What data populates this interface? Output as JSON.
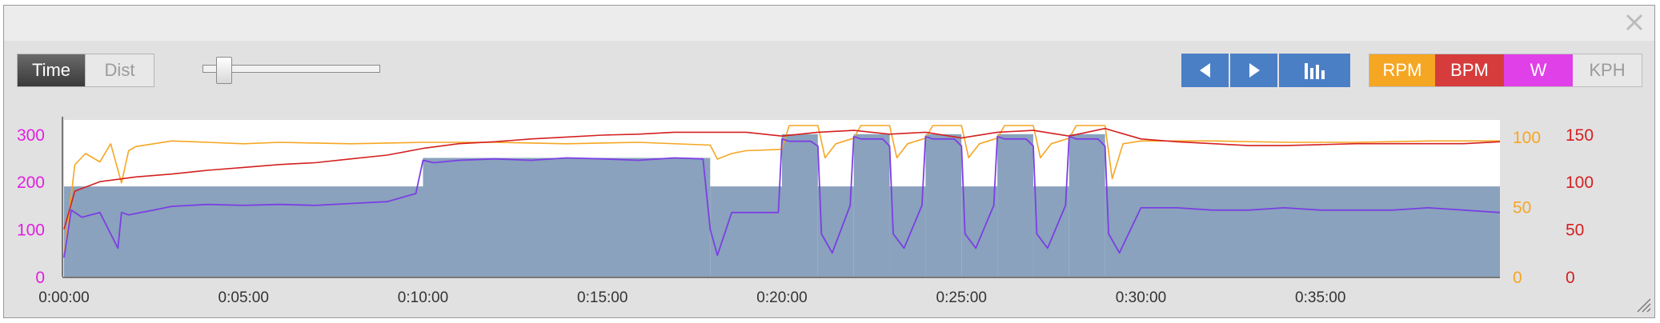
{
  "toggle": {
    "time_label": "Time",
    "dist_label": "Dist"
  },
  "slider": {
    "level": 0.12
  },
  "nav": {
    "prev_icon": "triangle-left-icon",
    "next_icon": "triangle-right-icon",
    "bars_icon": "bar-chart-icon"
  },
  "metrics": [
    {
      "label": "RPM",
      "color": "#f5a623"
    },
    {
      "label": "BPM",
      "color": "#d63c3c"
    },
    {
      "label": "W",
      "color": "#e040e8"
    },
    {
      "label": "KPH",
      "color": "#e8e8e8"
    }
  ],
  "chart_data": {
    "type": "area",
    "x_unit": "minutes",
    "x_ticks": [
      "0:00:00",
      "0:05:00",
      "0:10:00",
      "0:15:00",
      "0:20:00",
      "0:25:00",
      "0:30:00",
      "0:35:00"
    ],
    "xlim": [
      0,
      40
    ],
    "axes": {
      "watts": {
        "ticks": [
          "0",
          "100",
          "200",
          "300"
        ],
        "ylim": [
          0,
          330
        ],
        "color": "#e020e0"
      },
      "cadence": {
        "ticks": [
          "0",
          "50",
          "100"
        ],
        "ylim": [
          0,
          112
        ],
        "color": "#f5a623"
      },
      "heart_rate": {
        "ticks": [
          "0",
          "50",
          "100",
          "150"
        ],
        "ylim": [
          0,
          165
        ],
        "color": "#d42020"
      }
    },
    "target_blocks": [
      {
        "start": 0,
        "end": 0.2,
        "watts": 190
      },
      {
        "start": 0.2,
        "end": 10,
        "watts": 190
      },
      {
        "start": 10,
        "end": 18,
        "watts": 250
      },
      {
        "start": 18,
        "end": 20,
        "watts": 190
      },
      {
        "start": 20,
        "end": 21,
        "watts": 300
      },
      {
        "start": 21,
        "end": 22,
        "watts": 190
      },
      {
        "start": 22,
        "end": 23,
        "watts": 300
      },
      {
        "start": 23,
        "end": 24,
        "watts": 190
      },
      {
        "start": 24,
        "end": 25,
        "watts": 300
      },
      {
        "start": 25,
        "end": 26,
        "watts": 190
      },
      {
        "start": 26,
        "end": 27,
        "watts": 300
      },
      {
        "start": 27,
        "end": 28,
        "watts": 190
      },
      {
        "start": 28,
        "end": 29,
        "watts": 300
      },
      {
        "start": 29,
        "end": 40,
        "watts": 190
      }
    ],
    "power_series": {
      "name": "W",
      "color": "#7b3fe4",
      "x": [
        0,
        0.2,
        0.5,
        1,
        1.5,
        1.6,
        1.8,
        2.5,
        3,
        4,
        5,
        6,
        7,
        8,
        9,
        9.8,
        10,
        10.3,
        11,
        12,
        13,
        14,
        15,
        16,
        17,
        17.8,
        18,
        18.2,
        18.6,
        19,
        19.9,
        20,
        20.2,
        20.8,
        21,
        21.1,
        21.4,
        21.9,
        22,
        22.2,
        22.8,
        23,
        23.1,
        23.4,
        23.9,
        24,
        24.2,
        24.8,
        25,
        25.1,
        25.4,
        25.9,
        26,
        26.2,
        26.8,
        27,
        27.1,
        27.4,
        27.9,
        28,
        28.2,
        28.8,
        29,
        29.1,
        29.4,
        30,
        31,
        32,
        33,
        34,
        35,
        36,
        37,
        38,
        39,
        40
      ],
      "y": [
        40,
        140,
        125,
        135,
        60,
        135,
        130,
        140,
        148,
        152,
        150,
        152,
        150,
        154,
        158,
        175,
        245,
        240,
        245,
        248,
        245,
        250,
        248,
        245,
        250,
        248,
        100,
        45,
        135,
        135,
        135,
        290,
        285,
        285,
        275,
        90,
        50,
        150,
        295,
        290,
        290,
        275,
        90,
        60,
        150,
        295,
        290,
        290,
        275,
        90,
        60,
        150,
        295,
        290,
        290,
        275,
        90,
        60,
        150,
        295,
        290,
        290,
        275,
        90,
        50,
        145,
        145,
        140,
        140,
        145,
        140,
        140,
        140,
        145,
        140,
        135
      ]
    },
    "cadence_series": {
      "name": "RPM",
      "color": "#f5a623",
      "x": [
        0,
        0.3,
        0.6,
        1,
        1.3,
        1.6,
        1.8,
        2,
        2.5,
        3,
        4,
        5,
        6,
        8,
        10,
        12,
        14,
        16,
        18,
        18.2,
        18.6,
        19,
        20,
        20.2,
        21,
        21.2,
        21.5,
        22,
        22.2,
        23,
        23.2,
        23.5,
        24,
        24.2,
        25,
        25.2,
        25.5,
        26,
        26.2,
        27,
        27.2,
        27.5,
        28,
        28.2,
        29,
        29.2,
        29.5,
        30,
        32,
        34,
        36,
        38,
        40
      ],
      "y": [
        15,
        80,
        88,
        82,
        95,
        67,
        90,
        93,
        95,
        97,
        96,
        95,
        96,
        95,
        96,
        96,
        95,
        96,
        94,
        84,
        88,
        90,
        91,
        108,
        108,
        85,
        95,
        99,
        108,
        108,
        85,
        95,
        99,
        108,
        108,
        85,
        95,
        99,
        108,
        108,
        85,
        95,
        99,
        108,
        108,
        70,
        95,
        97,
        97,
        96,
        96,
        97,
        97
      ]
    },
    "hr_series": {
      "name": "BPM",
      "color": "#d42020",
      "x": [
        0,
        0.3,
        1,
        2,
        3,
        4,
        5,
        6,
        7,
        8,
        9,
        10,
        11,
        12,
        13,
        14,
        15,
        16,
        17,
        18,
        19,
        20,
        21,
        22,
        23,
        24,
        25,
        26,
        27,
        28,
        29,
        30,
        31,
        32,
        33,
        34,
        35,
        36,
        37,
        38,
        39,
        40
      ],
      "y": [
        50,
        90,
        100,
        105,
        108,
        112,
        115,
        118,
        120,
        124,
        128,
        135,
        140,
        142,
        145,
        147,
        149,
        150,
        152,
        152,
        152,
        148,
        152,
        154,
        150,
        152,
        146,
        152,
        154,
        148,
        156,
        145,
        142,
        140,
        138,
        138,
        139,
        140,
        140,
        140,
        140,
        142
      ]
    }
  }
}
